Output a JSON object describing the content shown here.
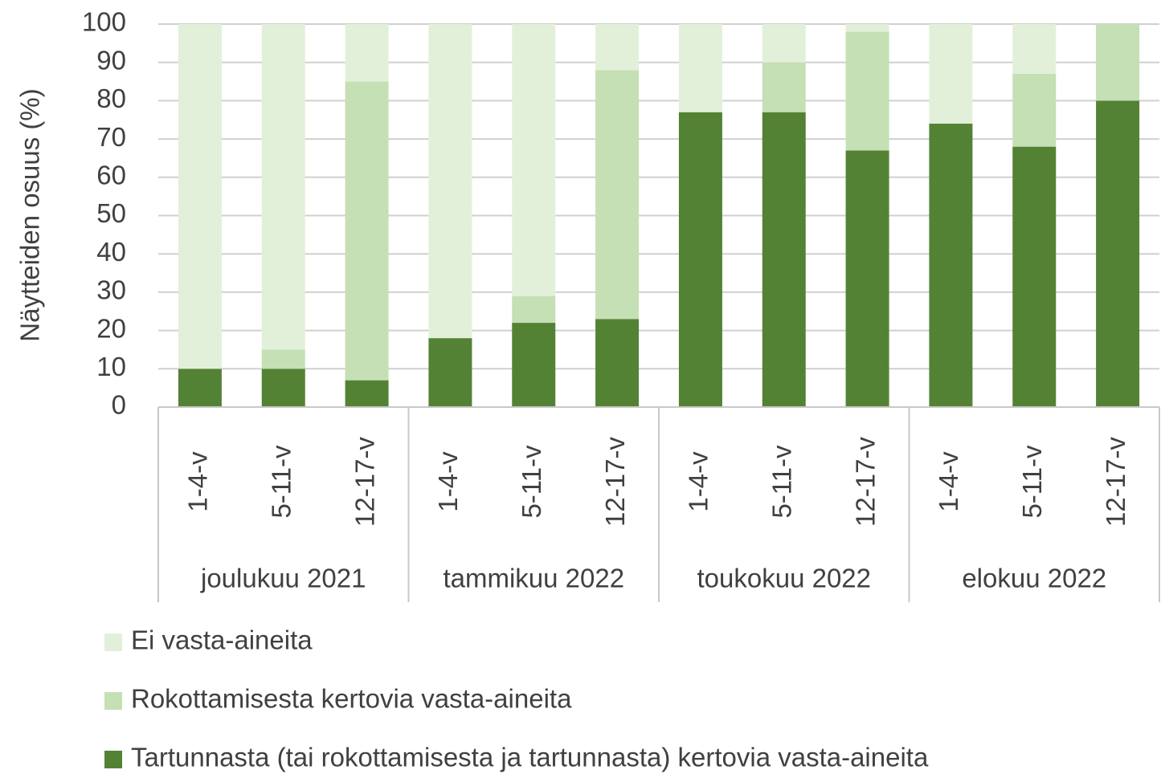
{
  "chart_data": {
    "type": "stacked_bar",
    "y_label": "Näytteiden osuus (%)",
    "categories": [
      "1-4-v",
      "5-11-v",
      "12-17-v",
      "1-4-v",
      "5-11-v",
      "12-17-v",
      "1-4-v",
      "5-11-v",
      "12-17-v",
      "1-4-v",
      "5-11-v",
      "12-17-v"
    ],
    "groups": [
      "joulukuu 2021",
      "tammikuu 2022",
      "toukokuu 2022",
      "elokuu 2022"
    ],
    "series": [
      {
        "name": "Tartunnasta (tai rokottamisesta ja tartunnasta) kertovia vasta-aineita",
        "color": "#548235",
        "values": [
          10,
          10,
          7,
          18,
          22,
          23,
          77,
          77,
          67,
          74,
          68,
          80
        ]
      },
      {
        "name": "Rokottamisesta kertovia vasta-aineita",
        "color": "#c5e0b4",
        "values": [
          0,
          5,
          78,
          0,
          7,
          65,
          0,
          13,
          31,
          0,
          19,
          20
        ]
      },
      {
        "name": "Ei vasta-aineita",
        "color": "#e2f0d9",
        "values": [
          90,
          85,
          15,
          82,
          71,
          12,
          23,
          10,
          2,
          26,
          13,
          0
        ]
      }
    ],
    "ylim": [
      0,
      100
    ],
    "yticks": [
      0,
      10,
      20,
      30,
      40,
      50,
      60,
      70,
      80,
      90,
      100
    ],
    "grid": true
  }
}
